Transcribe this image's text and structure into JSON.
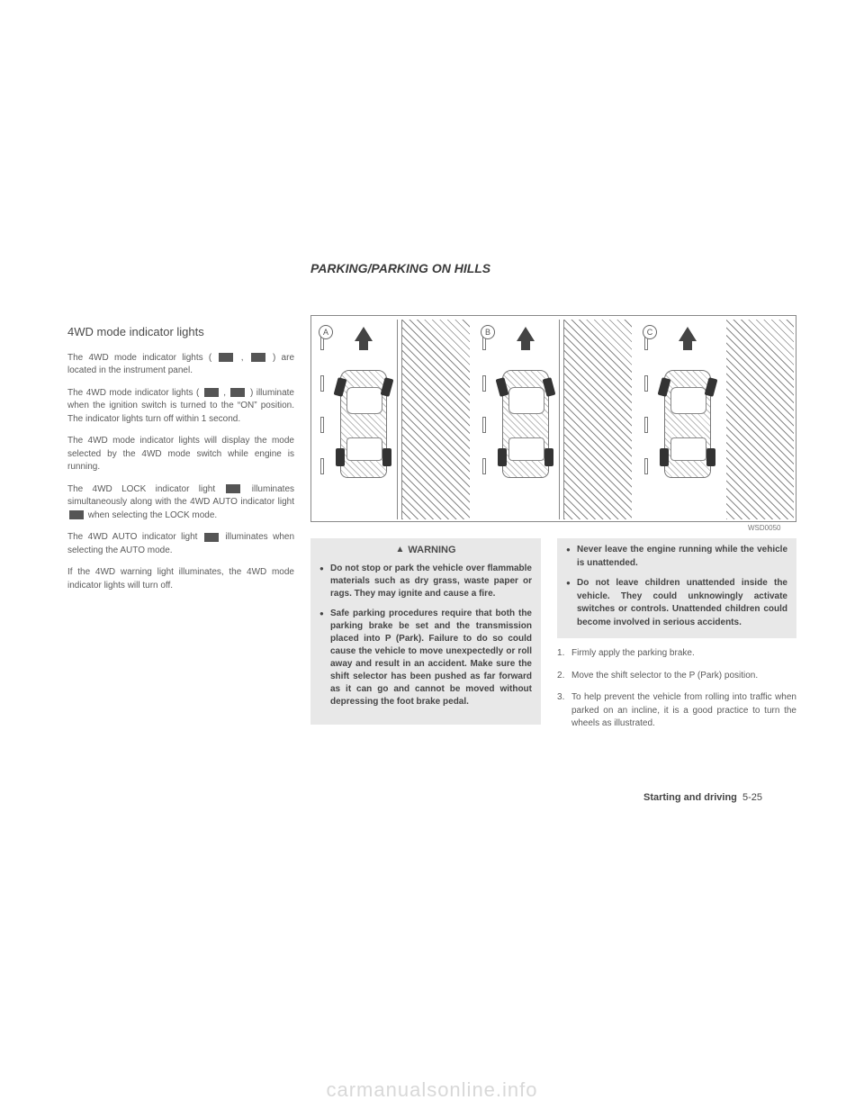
{
  "section_title": "PARKING/PARKING ON HILLS",
  "left": {
    "heading": "4WD mode indicator lights",
    "p1a": "The 4WD mode indicator lights (",
    "p1b": ",",
    "p1c": ") are located in the instrument panel.",
    "p2a": "The 4WD mode indicator lights (",
    "p2b": ",",
    "p2c": ") illuminate when the ignition switch is turned to the “ON” position. The indicator lights turn off within 1 second.",
    "p3": "The 4WD mode indicator lights will display the mode selected by the 4WD mode switch while engine is running.",
    "p4a": "The 4WD LOCK indicator light",
    "p4b": "illuminates simultaneously along with the 4WD AUTO indicator light",
    "p4c": "when selecting the LOCK mode.",
    "p5a": "The 4WD AUTO indicator light",
    "p5b": "illuminates when selecting the AUTO mode.",
    "p6": "If the 4WD warning light illuminates, the 4WD mode indicator lights will turn off."
  },
  "diagram": {
    "labelA": "A",
    "labelB": "B",
    "labelC": "C",
    "code": "WSD0050"
  },
  "warning": {
    "title": "WARNING",
    "items": [
      "Do not stop or park the vehicle over flammable materials such as dry grass, waste paper or rags. They may ignite and cause a fire.",
      "Safe parking procedures require that both the parking brake be set and the transmission placed into P (Park). Failure to do so could cause the vehicle to move unexpectedly or roll away and result in an accident. Make sure the shift selector has been pushed as far forward as it can go and cannot be moved without depressing the foot brake pedal."
    ]
  },
  "right_warn": [
    "Never leave the engine running while the vehicle is unattended.",
    "Do not leave children unattended inside the vehicle. They could unknowingly activate switches or controls. Unattended children could become involved in serious accidents."
  ],
  "steps": [
    "Firmly apply the parking brake.",
    "Move the shift selector to the P (Park) position.",
    "To help prevent the vehicle from rolling into traffic when parked on an incline, it is a good practice to turn the wheels as illustrated."
  ],
  "footer": {
    "label": "Starting and driving",
    "page": "5-25"
  },
  "watermark": "carmanualsonline.info"
}
